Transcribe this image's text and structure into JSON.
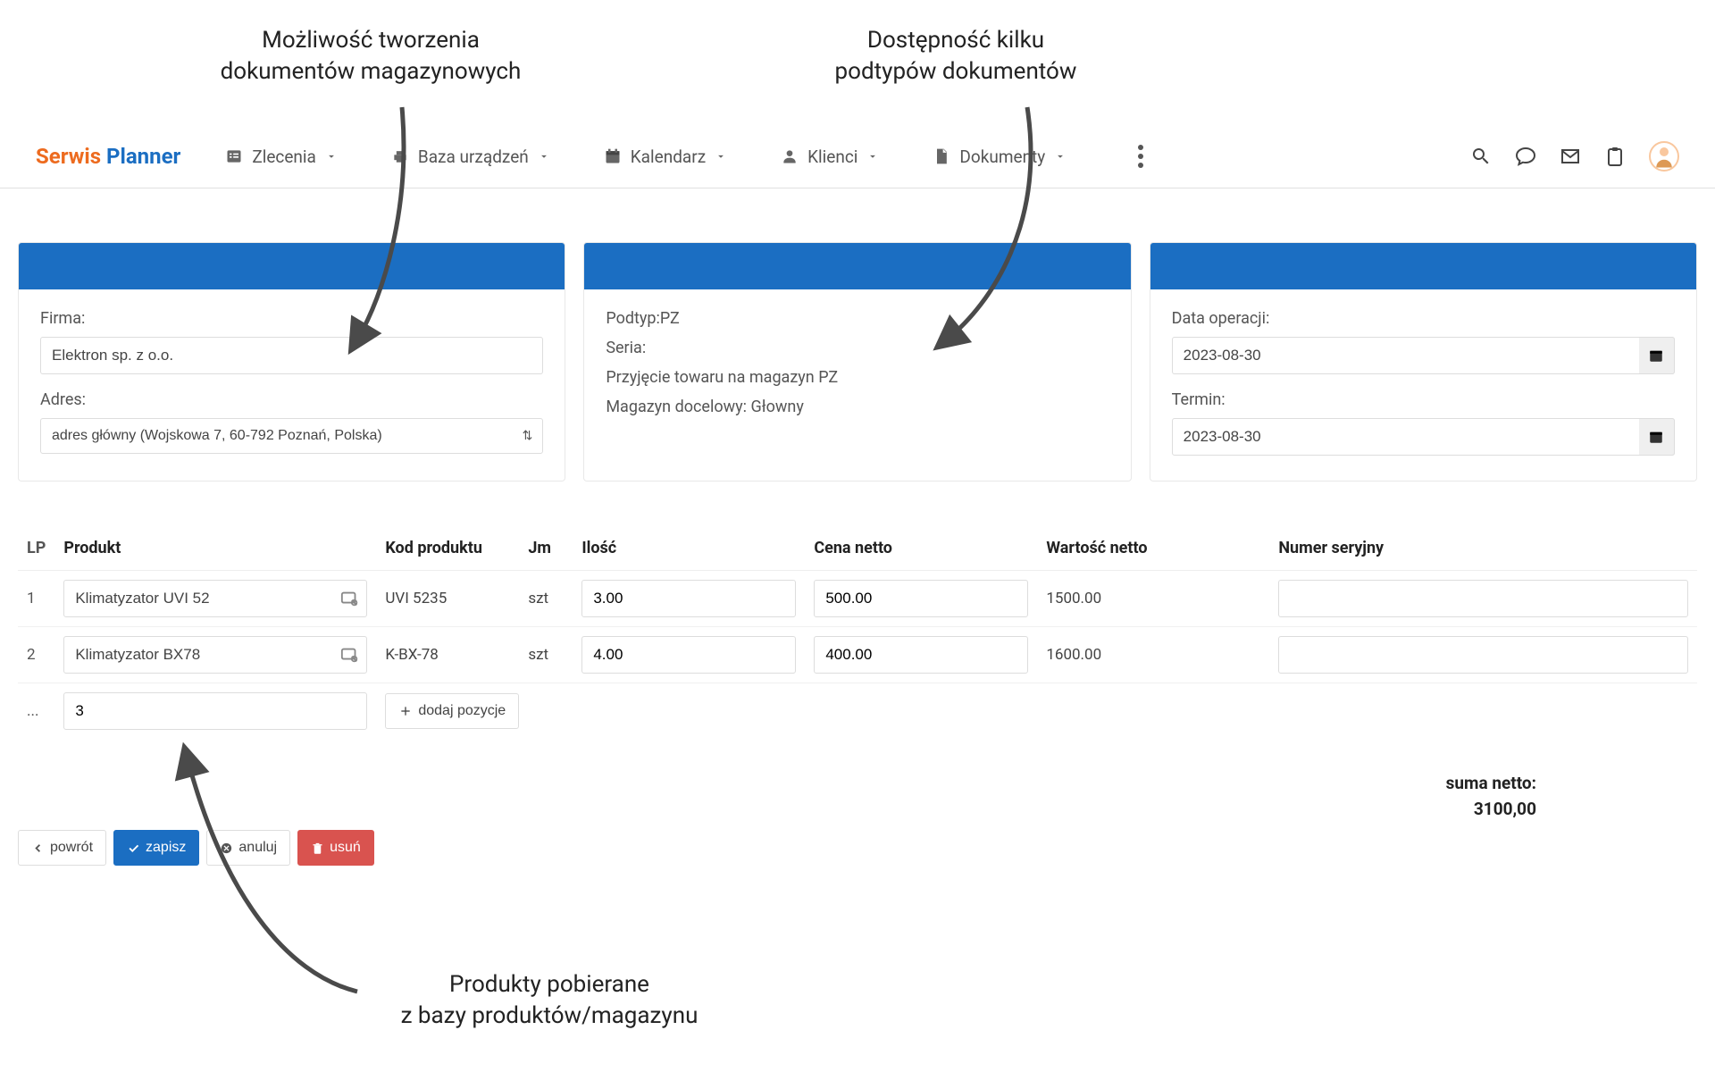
{
  "annotations": {
    "top_left": "Możliwość tworzenia\ndokumentów magazynowych",
    "top_right": "Dostępność kilku\npodtypów dokumentów",
    "bottom": "Produkty pobierane\nz bazy produktów/magazynu"
  },
  "logo": {
    "part1": "Serwis",
    "part2": "Planner"
  },
  "nav": {
    "items": [
      {
        "label": "Zlecenia"
      },
      {
        "label": "Baza urządzeń"
      },
      {
        "label": "Kalendarz"
      },
      {
        "label": "Klienci"
      },
      {
        "label": "Dokumenty"
      }
    ]
  },
  "panel_left": {
    "firma_label": "Firma:",
    "firma_value": "Elektron sp. z o.o.",
    "adres_label": "Adres:",
    "adres_value": "adres główny (Wojskowa 7, 60-792 Poznań, Polska)"
  },
  "panel_mid": {
    "podtyp": "Podtyp:PZ",
    "seria": "Seria:",
    "desc": "Przyjęcie towaru na magazyn PZ",
    "mag": "Magazyn docelowy: Głowny"
  },
  "panel_right": {
    "data_label": "Data operacji:",
    "data_value": "2023-08-30",
    "termin_label": "Termin:",
    "termin_value": "2023-08-30"
  },
  "table": {
    "headers": {
      "lp": "LP",
      "produkt": "Produkt",
      "kod": "Kod produktu",
      "jm": "Jm",
      "ilosc": "Ilość",
      "cena": "Cena netto",
      "wartosc": "Wartość netto",
      "sn": "Numer seryjny"
    },
    "rows": [
      {
        "lp": "1",
        "produkt": "Klimatyzator UVI 52",
        "kod": "UVI 5235",
        "jm": "szt",
        "ilosc": "3.00",
        "cena": "500.00",
        "wartosc": "1500.00",
        "sn": ""
      },
      {
        "lp": "2",
        "produkt": "Klimatyzator BX78",
        "kod": "K-BX-78",
        "jm": "szt",
        "ilosc": "4.00",
        "cena": "400.00",
        "wartosc": "1600.00",
        "sn": ""
      }
    ],
    "new_lp": "...",
    "new_val": "3",
    "add_label": "dodaj pozycje"
  },
  "summary": {
    "label": "suma netto:",
    "value": "3100,00"
  },
  "actions": {
    "back": "powrót",
    "save": "zapisz",
    "cancel": "anuluj",
    "delete": "usuń"
  },
  "colors": {
    "brand_blue": "#1b6ec2",
    "brand_orange": "#ed6b1f",
    "danger": "#d9534f",
    "panel_border": "#e8e8e8",
    "arrow": "#4a4a4a"
  }
}
